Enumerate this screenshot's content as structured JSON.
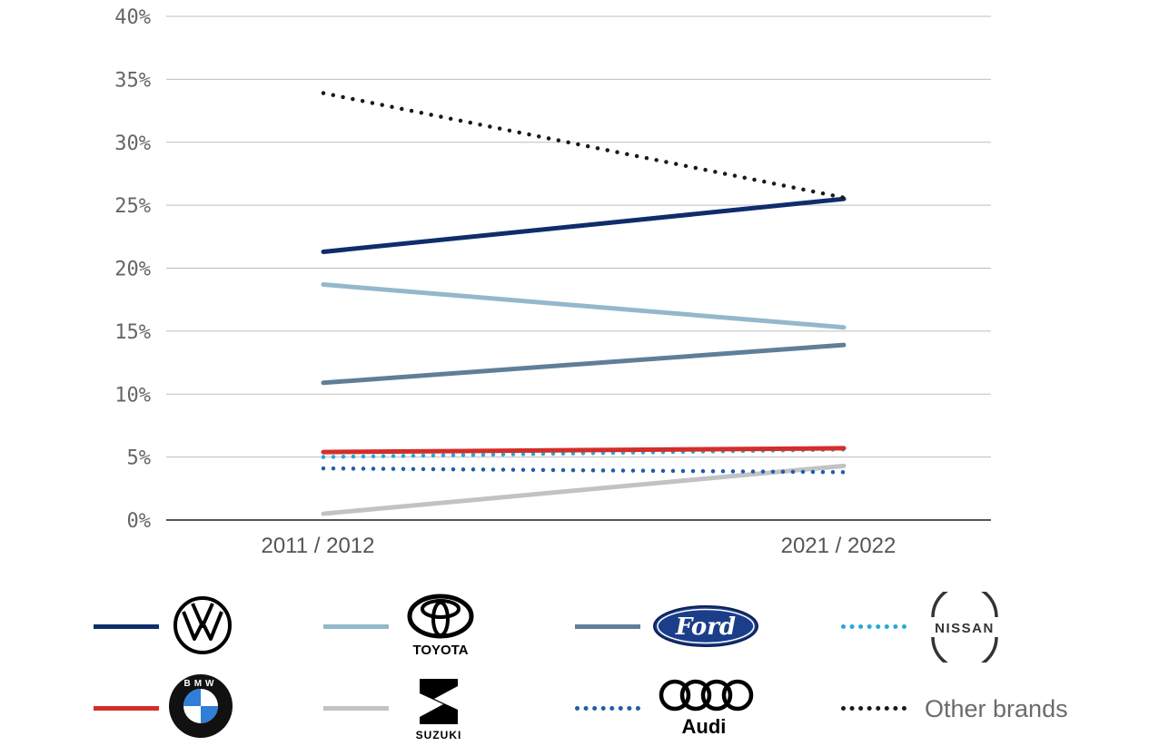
{
  "chart_data": {
    "type": "line",
    "categories": [
      "2011 / 2012",
      "2021 / 2022"
    ],
    "y_ticks": [
      "0%",
      "5%",
      "10%",
      "15%",
      "20%",
      "25%",
      "30%",
      "35%",
      "40%"
    ],
    "ylim": [
      0,
      40
    ],
    "y_unit": "%",
    "grid": true,
    "legend_position": "bottom",
    "series": [
      {
        "key": "vw",
        "logo": "volkswagen-logo",
        "values": [
          21.3,
          25.5
        ],
        "color": "#0f2d6b",
        "style": "solid"
      },
      {
        "key": "toyota",
        "logo": "toyota-logo",
        "logo_text": "TOYOTA",
        "values": [
          18.7,
          15.3
        ],
        "color": "#93b8cb",
        "style": "solid"
      },
      {
        "key": "ford",
        "logo": "ford-logo",
        "logo_text": "Ford",
        "values": [
          10.9,
          13.9
        ],
        "color": "#5f7f99",
        "style": "solid"
      },
      {
        "key": "nissan",
        "logo": "nissan-logo",
        "logo_text": "NISSAN",
        "values": [
          5.0,
          5.6
        ],
        "color": "#29a8d4",
        "style": "dotted"
      },
      {
        "key": "bmw",
        "logo": "bmw-logo",
        "logo_text": "BMW",
        "values": [
          5.4,
          5.7
        ],
        "color": "#d42e2a",
        "style": "solid"
      },
      {
        "key": "suzuki",
        "logo": "suzuki-logo",
        "logo_text": "SUZUKI",
        "values": [
          0.5,
          4.3
        ],
        "color": "#c2c2c6",
        "style": "solid"
      },
      {
        "key": "audi",
        "logo": "audi-logo",
        "logo_text": "Audi",
        "values": [
          4.1,
          3.8
        ],
        "color": "#1f5ea8",
        "style": "dotted"
      },
      {
        "key": "other",
        "name": "Other brands",
        "values": [
          33.9,
          25.6
        ],
        "color": "#1a1a1a",
        "style": "dotted"
      }
    ]
  }
}
